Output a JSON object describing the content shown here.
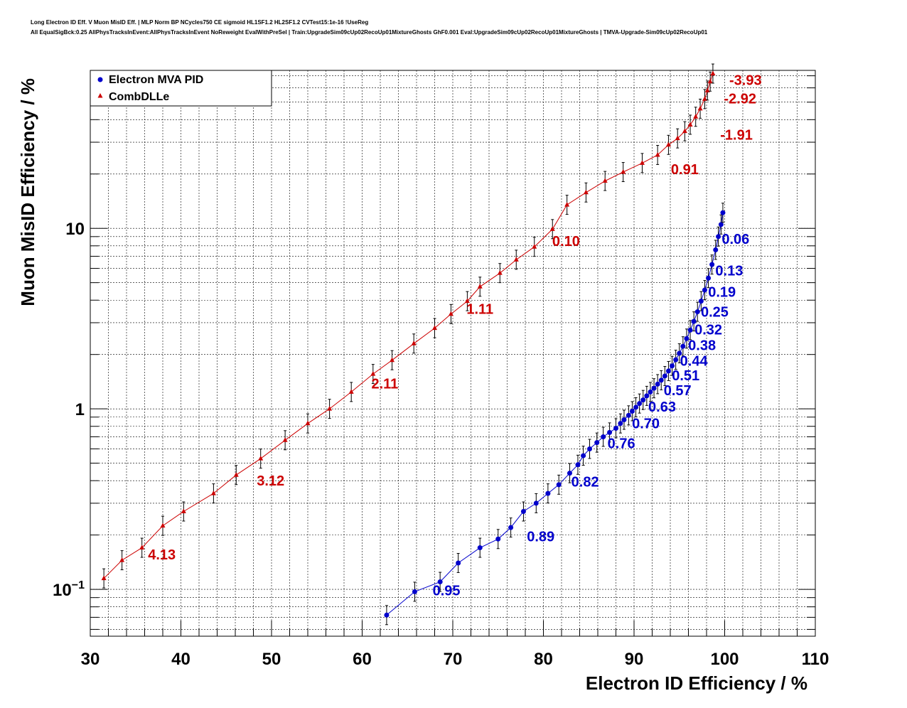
{
  "header": {
    "line1": "Long Electron ID Eff. V Muon MisID Eff. | MLP Norm BP NCycles750 CE sigmoid HL1SF1.2 HL2SF1.2 CVTest15:1e-16 !UseReg",
    "line2": "All EqualSigBck:0.25 AllPhysTracksInEvent:AllPhysTracksInEvent NoReweight EvalWithPreSel | Train:UpgradeSim09cUp02RecoUp01MixtureGhosts GhF0.001 Eval:UpgradeSim09cUp02RecoUp01MixtureGhosts | TMVA-Upgrade-Sim09cUp02RecoUp01"
  },
  "chart_data": {
    "type": "line",
    "xlabel": "Electron ID Efficiency / %",
    "ylabel": "Muon MisID Efficiency / %",
    "xlim": [
      30,
      110
    ],
    "ylim": [
      0.055,
      75
    ],
    "yscale": "log",
    "grid": true,
    "legend_position": "top-left",
    "x_ticks": [
      "30",
      "40",
      "50",
      "60",
      "70",
      "80",
      "90",
      "100",
      "110"
    ],
    "y_ticks": [
      {
        "value": 0.1,
        "base": "10",
        "exp": "−1"
      },
      {
        "value": 1,
        "text": "1"
      },
      {
        "value": 10,
        "text": "10"
      }
    ],
    "series": [
      {
        "name": "Electron MVA PID",
        "color": "#0000cc",
        "marker": "circle",
        "x": [
          62.7,
          65.8,
          68.6,
          70.6,
          73.0,
          75.0,
          76.4,
          77.8,
          79.2,
          80.5,
          81.7,
          82.9,
          83.8,
          84.4,
          85.1,
          85.9,
          86.6,
          87.3,
          88.0,
          88.5,
          88.9,
          89.4,
          89.8,
          90.2,
          90.6,
          91.0,
          91.4,
          91.8,
          92.2,
          92.6,
          93.0,
          93.4,
          93.8,
          94.2,
          94.6,
          95.0,
          95.4,
          95.8,
          96.2,
          96.6,
          97.0,
          97.4,
          97.8,
          98.2,
          98.6,
          99.0,
          99.3,
          99.6,
          99.8
        ],
        "y": [
          0.072,
          0.097,
          0.11,
          0.14,
          0.17,
          0.19,
          0.22,
          0.27,
          0.3,
          0.34,
          0.38,
          0.44,
          0.49,
          0.55,
          0.6,
          0.65,
          0.7,
          0.74,
          0.78,
          0.83,
          0.87,
          0.92,
          0.97,
          1.02,
          1.07,
          1.12,
          1.18,
          1.24,
          1.3,
          1.37,
          1.44,
          1.52,
          1.62,
          1.73,
          1.87,
          2.03,
          2.22,
          2.45,
          2.73,
          3.05,
          3.45,
          3.95,
          4.55,
          5.3,
          6.3,
          7.6,
          9.0,
          10.5,
          12.2
        ]
      },
      {
        "name": "CombDLLe",
        "color": "#cc0000",
        "marker": "triangle",
        "x": [
          31.5,
          33.5,
          35.7,
          38.0,
          40.3,
          43.6,
          46.1,
          48.8,
          51.5,
          54.0,
          56.4,
          58.8,
          61.2,
          63.3,
          65.7,
          68.0,
          69.8,
          71.6,
          73.0,
          75.2,
          77.0,
          79.0,
          81.0,
          82.6,
          84.7,
          86.8,
          88.8,
          90.9,
          92.6,
          93.8,
          94.8,
          95.6,
          96.2,
          96.8,
          97.3,
          97.8,
          98.1,
          98.4,
          98.7
        ],
        "y": [
          0.115,
          0.145,
          0.17,
          0.225,
          0.27,
          0.34,
          0.43,
          0.53,
          0.67,
          0.83,
          1.0,
          1.24,
          1.56,
          1.86,
          2.3,
          2.8,
          3.35,
          3.95,
          4.75,
          5.65,
          6.7,
          7.9,
          9.9,
          13.5,
          15.8,
          18.3,
          20.5,
          23.0,
          25.5,
          29.0,
          31.5,
          34.5,
          37.5,
          41.5,
          46.0,
          52.0,
          58.0,
          65.0,
          72.0
        ]
      }
    ],
    "annotations": [
      {
        "text": "0.06",
        "x": 101.2,
        "y": 8.75,
        "series": "Electron MVA PID"
      },
      {
        "text": "0.13",
        "x": 100.5,
        "y": 5.85,
        "series": "Electron MVA PID"
      },
      {
        "text": "0.19",
        "x": 99.7,
        "y": 4.45,
        "series": "Electron MVA PID"
      },
      {
        "text": "0.25",
        "x": 98.9,
        "y": 3.45,
        "series": "Electron MVA PID"
      },
      {
        "text": "0.32",
        "x": 98.2,
        "y": 2.75,
        "series": "Electron MVA PID"
      },
      {
        "text": "0.38",
        "x": 97.5,
        "y": 2.25,
        "series": "Electron MVA PID"
      },
      {
        "text": "0.44",
        "x": 96.6,
        "y": 1.85,
        "series": "Electron MVA PID"
      },
      {
        "text": "0.51",
        "x": 95.7,
        "y": 1.53,
        "series": "Electron MVA PID"
      },
      {
        "text": "0.57",
        "x": 94.8,
        "y": 1.27,
        "series": "Electron MVA PID"
      },
      {
        "text": "0.63",
        "x": 93.1,
        "y": 1.03,
        "series": "Electron MVA PID"
      },
      {
        "text": "0.70",
        "x": 91.3,
        "y": 0.83,
        "series": "Electron MVA PID"
      },
      {
        "text": "0.76",
        "x": 88.6,
        "y": 0.645,
        "series": "Electron MVA PID"
      },
      {
        "text": "0.82",
        "x": 84.6,
        "y": 0.395,
        "series": "Electron MVA PID"
      },
      {
        "text": "0.89",
        "x": 79.7,
        "y": 0.197,
        "series": "Electron MVA PID"
      },
      {
        "text": "0.95",
        "x": 69.3,
        "y": 0.0985,
        "series": "Electron MVA PID"
      },
      {
        "text": "-3.93",
        "x": 102.3,
        "y": 66.5,
        "series": "CombDLLe"
      },
      {
        "text": "-2.92",
        "x": 101.7,
        "y": 52.5,
        "series": "CombDLLe"
      },
      {
        "text": "-1.91",
        "x": 101.3,
        "y": 33.0,
        "series": "CombDLLe"
      },
      {
        "text": "0.91",
        "x": 95.6,
        "y": 21.3,
        "series": "CombDLLe"
      },
      {
        "text": "0.10",
        "x": 82.5,
        "y": 8.5,
        "series": "CombDLLe"
      },
      {
        "text": "1.11",
        "x": 73.0,
        "y": 3.58,
        "series": "CombDLLe"
      },
      {
        "text": "2.11",
        "x": 62.5,
        "y": 1.38,
        "series": "CombDLLe"
      },
      {
        "text": "3.12",
        "x": 49.9,
        "y": 0.4,
        "series": "CombDLLe"
      },
      {
        "text": "4.13",
        "x": 37.9,
        "y": 0.156,
        "series": "CombDLLe"
      }
    ]
  }
}
